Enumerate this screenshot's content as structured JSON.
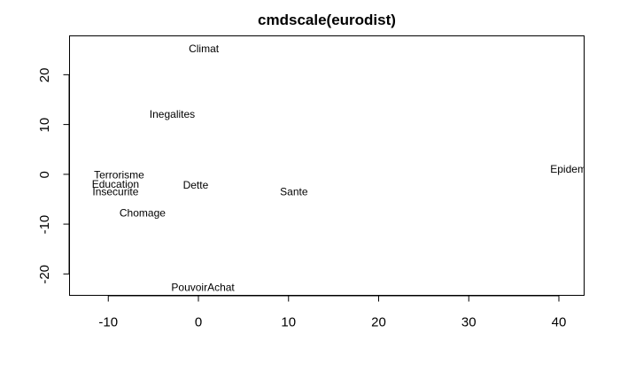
{
  "chart_data": {
    "type": "scatter",
    "title": "cmdscale(eurodist)",
    "xlabel": "",
    "ylabel": "",
    "xlim": [
      -14.3,
      42.8
    ],
    "ylim": [
      -24.3,
      27.8
    ],
    "x_ticks": [
      -10,
      0,
      10,
      20,
      30,
      40
    ],
    "y_ticks": [
      -20,
      -10,
      0,
      10,
      20
    ],
    "grid": false,
    "points": [
      {
        "label": "Climat",
        "x": 0.6,
        "y": 25.2
      },
      {
        "label": "Inegalites",
        "x": -2.9,
        "y": 12.1
      },
      {
        "label": "Terrorisme",
        "x": -8.8,
        "y": -0.1
      },
      {
        "label": "Education",
        "x": -9.2,
        "y": -2.0
      },
      {
        "label": "Insecurite",
        "x": -9.2,
        "y": -3.5
      },
      {
        "label": "Chomage",
        "x": -6.2,
        "y": -7.8
      },
      {
        "label": "Dette",
        "x": -0.3,
        "y": -2.2
      },
      {
        "label": "Sante",
        "x": 10.6,
        "y": -3.5
      },
      {
        "label": "Epidemie",
        "x": 41.5,
        "y": 1.0
      },
      {
        "label": "PouvoirAchat",
        "x": 0.5,
        "y": -22.7
      }
    ]
  }
}
